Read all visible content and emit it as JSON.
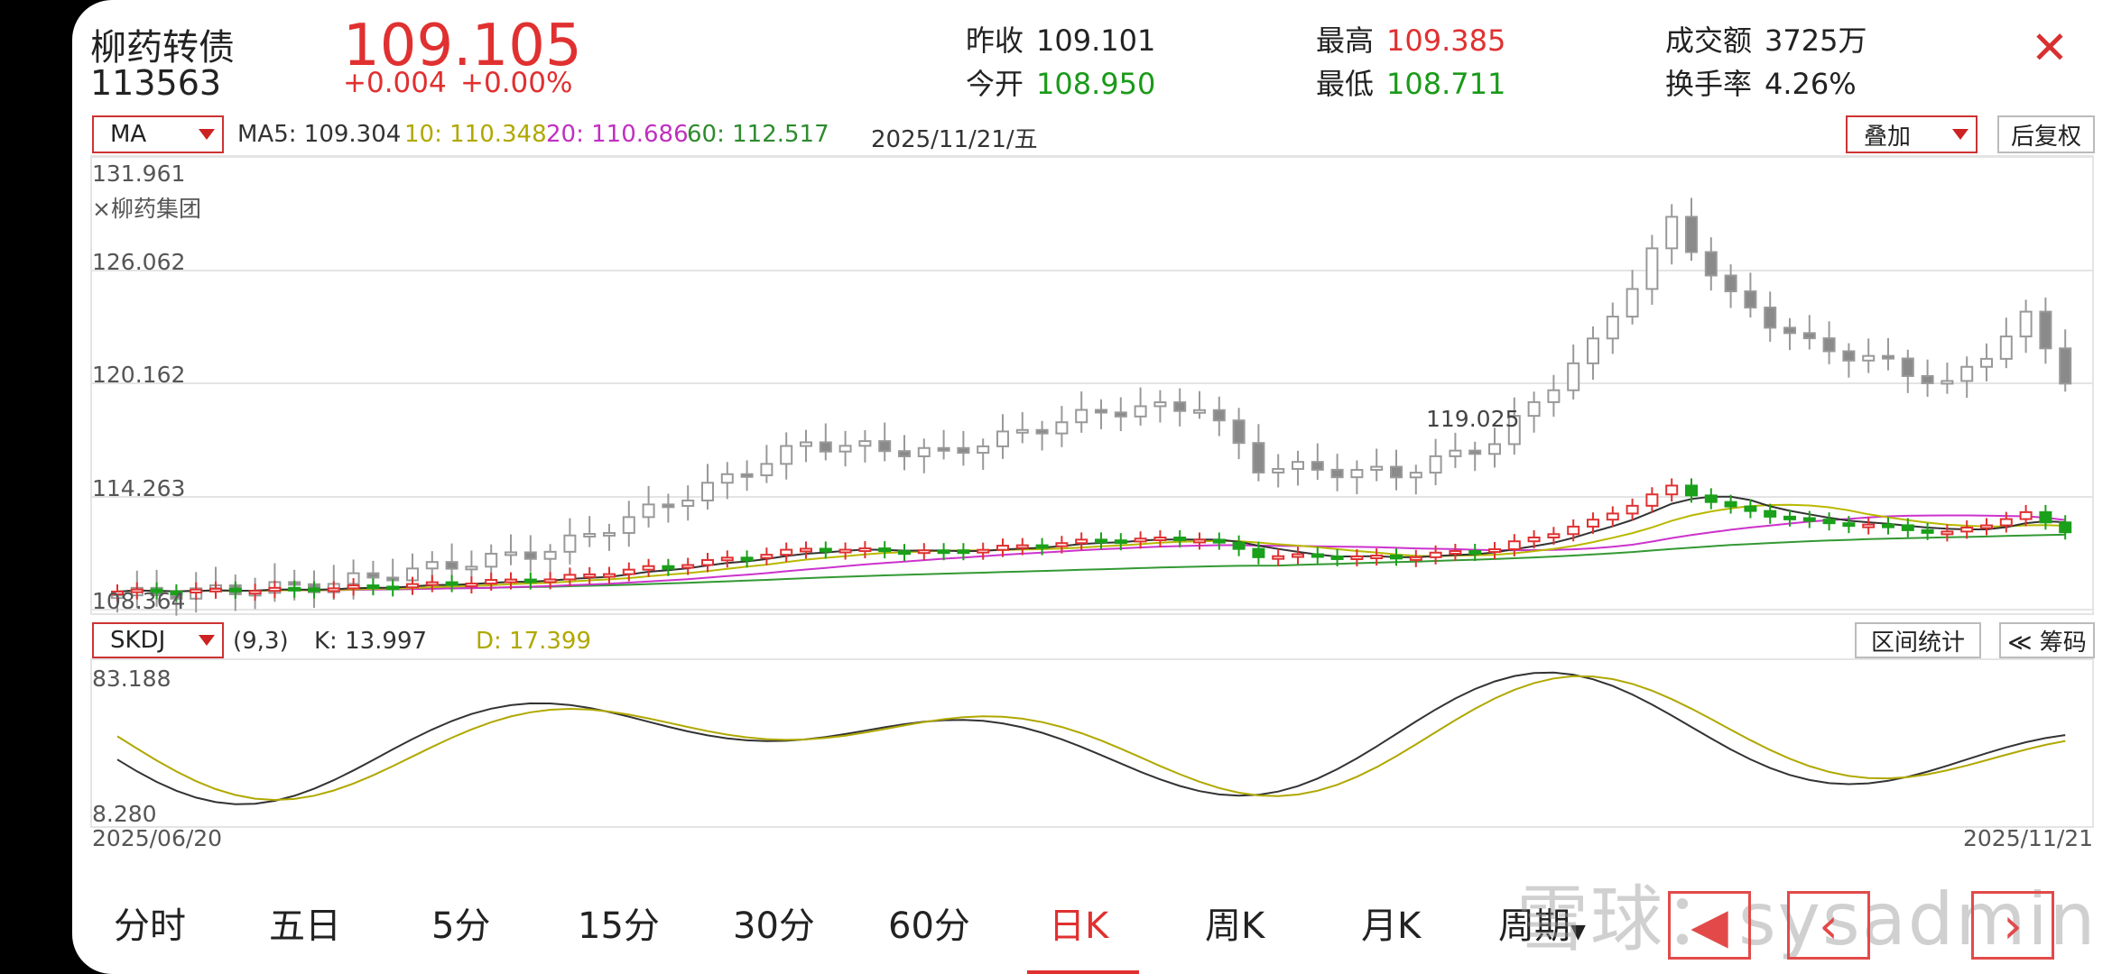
{
  "header": {
    "name": "柳药转债",
    "code": "113563",
    "price": "109.105",
    "change_abs": "+0.004",
    "change_pct": "+0.00%",
    "prev_close_label": "昨收",
    "prev_close": "109.101",
    "open_label": "今开",
    "open": "108.950",
    "high_label": "最高",
    "high": "109.385",
    "low_label": "最低",
    "low": "108.711",
    "turnover_label": "成交额",
    "turnover": "3725万",
    "turnover_rate_label": "换手率",
    "turnover_rate": "4.26%",
    "close_icon": "close-icon"
  },
  "ma_bar": {
    "selector": "MA",
    "ma5": "MA5: 109.304",
    "ma10": "10: 110.348",
    "ma20": "20: 110.686",
    "ma60": "60: 112.517",
    "date": "2025/11/21/五",
    "overlay_select": "叠加",
    "adjust_button": "后复权",
    "colors": {
      "ma5": "#333333",
      "ma10": "#b8b800",
      "ma20": "#cc33cc",
      "ma60": "#339933",
      "up": "#e03030",
      "down": "#1aa01a"
    }
  },
  "kline": {
    "y_labels": [
      "131.961",
      "126.062",
      "120.162",
      "114.263",
      "108.364"
    ],
    "overlay_label": "×柳药集团",
    "peak_label": "119.025"
  },
  "kdj_bar": {
    "selector": "SKDJ",
    "params": "(9,3)",
    "k": "K: 13.997",
    "d": "D: 17.399",
    "range_stats_button": "区间统计",
    "chips_button": "≪ 筹码",
    "y_top": "83.188",
    "y_bottom": "8.280",
    "date_start": "2025/06/20",
    "date_end": "2025/11/21"
  },
  "tabs": [
    "分时",
    "五日",
    "5分",
    "15分",
    "30分",
    "60分",
    "日K",
    "周K",
    "月K",
    "周期"
  ],
  "active_tab": "日K",
  "watermark": "雪球：sysadmin",
  "nav": {
    "prev": "‹",
    "next": "›",
    "switch": "◀"
  }
}
